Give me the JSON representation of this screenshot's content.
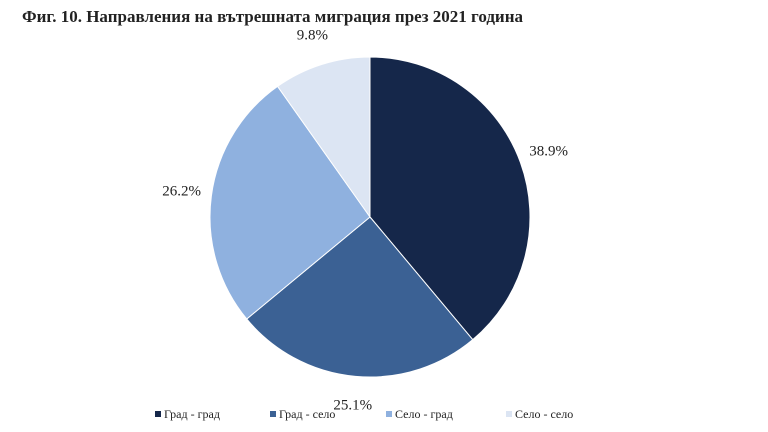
{
  "chart_data": {
    "type": "pie",
    "title": "Фиг. 10. Направления на вътрешната миграция през 2021 година",
    "categories": [
      "Град - град",
      "Град - село",
      "Село - град",
      "Село - село"
    ],
    "values": [
      38.9,
      25.1,
      26.2,
      9.8
    ],
    "value_labels": [
      "38.9%",
      "25.1%",
      "26.2%",
      "9.8%"
    ],
    "colors": [
      "#15274a",
      "#3b6194",
      "#8fb1df",
      "#dce5f3"
    ],
    "legend": "bottom"
  }
}
